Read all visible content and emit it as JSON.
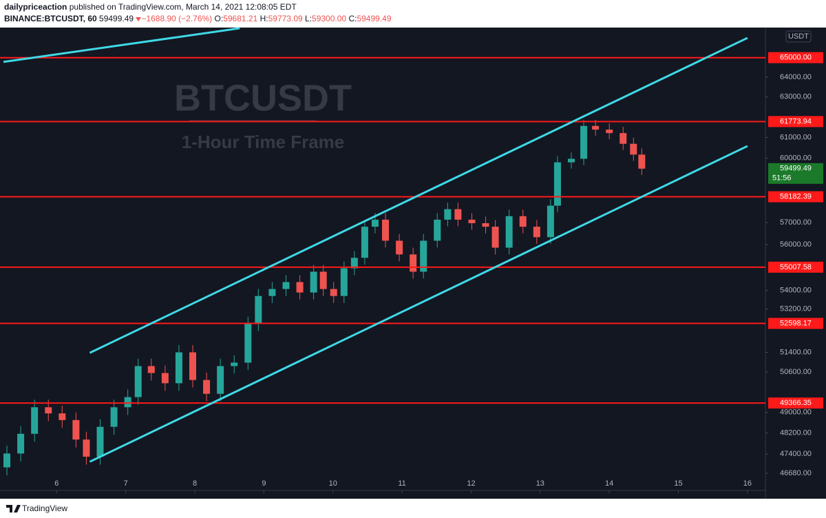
{
  "header": {
    "author": "dailypriceaction",
    "published": "published on TradingView.com, March 14, 2021 12:08:05 EDT",
    "symbol": "BINANCE:BTCUSDT, 60",
    "last": "59499.49",
    "change": "−1688.90 (−2.76%)",
    "o_label": "O:",
    "o": "59681.21",
    "h_label": "H:",
    "h": "59773.09",
    "l_label": "L:",
    "l": "59300.00",
    "c_label": "C:",
    "c": "59499.49"
  },
  "footer": {
    "brand": "TradingView"
  },
  "chart_data": {
    "type": "candlestick",
    "log": true,
    "watermark": "BTCUSDT",
    "subtitle": "1-Hour Time Frame",
    "currency": "USDT",
    "up_color": "#26a69a",
    "down_color": "#ef5350",
    "level_color": "#ff1a1a",
    "trend_color": "#3fd9e6",
    "xlim": [
      5.18,
      16.26
    ],
    "xticks": [
      6,
      7,
      8,
      9,
      10,
      11,
      12,
      13,
      14,
      15,
      16
    ],
    "ylim": [
      46045,
      66578
    ],
    "yticks": [
      {
        "value": 64000,
        "label": "64000.00"
      },
      {
        "value": 63000,
        "label": "63000.00"
      },
      {
        "value": 61000,
        "label": "61000.00"
      },
      {
        "value": 60000,
        "label": "60000.00"
      },
      {
        "value": 57000,
        "label": "57000.00"
      },
      {
        "value": 56000,
        "label": "56000.00"
      },
      {
        "value": 54000,
        "label": "54000.00"
      },
      {
        "value": 53200,
        "label": "53200.00"
      },
      {
        "value": 51400,
        "label": "51400.00"
      },
      {
        "value": 50600,
        "label": "50600.00"
      },
      {
        "value": 49000,
        "label": "49000.00"
      },
      {
        "value": 48200,
        "label": "48200.00"
      },
      {
        "value": 47400,
        "label": "47400.00"
      },
      {
        "value": 46680,
        "label": "46680.00"
      }
    ],
    "levels": [
      {
        "value": 65000,
        "label": "65000.00"
      },
      {
        "value": 61773.94,
        "label": "61773.94"
      },
      {
        "value": 58182.39,
        "label": "58182.39"
      },
      {
        "value": 55007.58,
        "label": "55007.58"
      },
      {
        "value": 52598.17,
        "label": "52598.17"
      },
      {
        "value": 49366.35,
        "label": "49366.35"
      }
    ],
    "last_price": 59499.49,
    "countdown": "51:56",
    "trendlines": [
      {
        "x": [
          6.48,
          16.0
        ],
        "y": [
          51380,
          66030
        ]
      },
      {
        "x": [
          6.48,
          16.0
        ],
        "y": [
          47110,
          60580
        ]
      },
      {
        "x": [
          5.23,
          8.65
        ],
        "y": [
          64780,
          66540
        ]
      }
    ],
    "x": [
      5.28,
      5.48,
      5.68,
      5.88,
      6.08,
      6.28,
      6.43,
      6.63,
      6.83,
      7.03,
      7.18,
      7.37,
      7.57,
      7.77,
      7.97,
      8.17,
      8.37,
      8.57,
      8.77,
      8.92,
      9.12,
      9.32,
      9.52,
      9.72,
      9.86,
      10.01,
      10.16,
      10.31,
      10.46,
      10.61,
      10.76,
      10.96,
      11.16,
      11.31,
      11.51,
      11.66,
      11.81,
      12.01,
      12.21,
      12.35,
      12.55,
      12.75,
      12.95,
      13.15,
      13.25,
      13.45,
      13.63,
      13.8,
      14.0,
      14.2,
      14.35,
      14.47
    ],
    "open": [
      46900,
      47420,
      48170,
      49200,
      48960,
      48700,
      47950,
      47300,
      48440,
      49200,
      49600,
      50840,
      50560,
      50150,
      51400,
      50280,
      49730,
      50840,
      50980,
      52580,
      53760,
      54060,
      54360,
      53910,
      54810,
      54060,
      53760,
      54960,
      55420,
      56810,
      57130,
      56180,
      55570,
      54810,
      56180,
      57130,
      57610,
      57130,
      56970,
      56810,
      55870,
      57290,
      56810,
      56340,
      57770,
      59800,
      59970,
      61560,
      61380,
      61210,
      60690,
      60170
    ],
    "high": [
      47720,
      48470,
      49500,
      49500,
      49260,
      49000,
      48250,
      48740,
      49500,
      49900,
      51140,
      51140,
      50860,
      51700,
      51700,
      50580,
      51140,
      51280,
      52880,
      54060,
      54360,
      54660,
      54660,
      55110,
      55110,
      54360,
      55260,
      55720,
      57110,
      57430,
      57430,
      56480,
      55870,
      56480,
      57430,
      57910,
      57910,
      57430,
      57270,
      57110,
      57590,
      57590,
      57110,
      58070,
      60100,
      60270,
      61860,
      61860,
      61680,
      61510,
      60990,
      60470
    ],
    "low": [
      46600,
      47120,
      47870,
      48660,
      48400,
      47650,
      47000,
      47000,
      48140,
      48900,
      49300,
      50260,
      49850,
      49850,
      49980,
      49430,
      49430,
      50540,
      50680,
      52280,
      53460,
      53760,
      53610,
      53610,
      53760,
      53460,
      53460,
      54660,
      55120,
      56510,
      55880,
      55270,
      54510,
      54510,
      55880,
      56830,
      56830,
      56670,
      56510,
      55570,
      55570,
      56510,
      56040,
      56040,
      57470,
      59500,
      59670,
      61080,
      60910,
      60390,
      59870,
      59200
    ],
    "close": [
      47420,
      48170,
      49200,
      48960,
      48700,
      47950,
      47300,
      48440,
      49200,
      49600,
      50840,
      50560,
      50150,
      51400,
      50280,
      49730,
      50840,
      50980,
      52580,
      53760,
      54060,
      54360,
      53910,
      54810,
      54060,
      53760,
      54960,
      55420,
      56810,
      57130,
      56180,
      55570,
      54810,
      56180,
      57130,
      57610,
      57130,
      56970,
      56810,
      55870,
      57290,
      56810,
      56340,
      57770,
      59800,
      59970,
      61560,
      61380,
      61210,
      60690,
      60170,
      59499.49
    ]
  }
}
